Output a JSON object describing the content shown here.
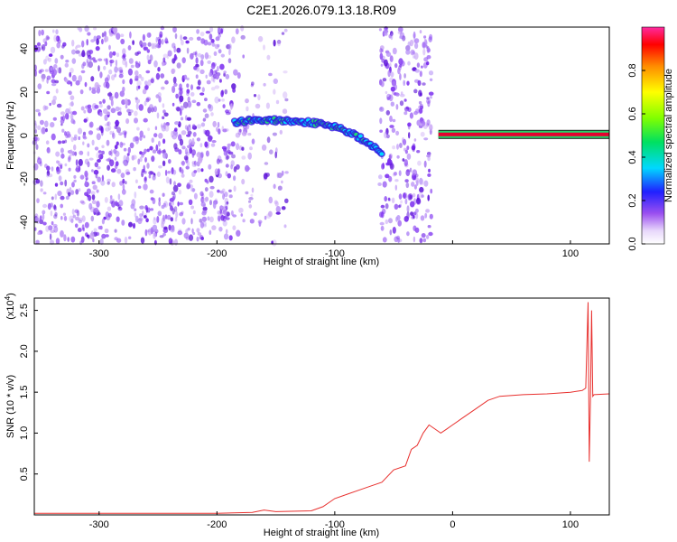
{
  "title": "C2E1.2026.079.13.18.R09",
  "colors": {
    "snr_line": "#e8302e",
    "band_red": "#e6002e",
    "band_green": "#27d06a",
    "scatter_purple": "#7a2bf0",
    "scatter_light": "#c9a6f5"
  },
  "chart_data": [
    {
      "type": "heatmap",
      "name": "spectrogram",
      "xlabel": "Height of straight line (km)",
      "ylabel": "Frequency (Hz)",
      "xlim": [
        -355,
        133
      ],
      "ylim": [
        -50,
        50
      ],
      "xticks": [
        -300,
        -200,
        -100,
        0,
        100
      ],
      "xtick_labels": [
        "-300",
        "-200",
        "-100",
        "",
        "100"
      ],
      "yticks": [
        -40,
        -20,
        0,
        20,
        40
      ],
      "ytick_labels": [
        "-40",
        "-20",
        "0",
        "20",
        "40"
      ],
      "grid": false,
      "colorbar": {
        "label": "Normalized spectral amplitude",
        "range": [
          0,
          1
        ],
        "ticks": [
          0.0,
          0.2,
          0.4,
          0.6,
          0.8
        ],
        "tick_labels": [
          "0.0",
          "0.2",
          "0.4",
          "0.6",
          "0.8"
        ]
      },
      "regions": [
        {
          "x_range": [
            -355,
            -185
          ],
          "kind": "noise",
          "density": "dense"
        },
        {
          "x_range": [
            -185,
            -140
          ],
          "kind": "noise",
          "density": "sparse"
        },
        {
          "x_range": [
            -62,
            -18
          ],
          "kind": "noise",
          "density": "dense"
        }
      ],
      "signal_track": [
        {
          "x": -185,
          "y": 6
        },
        {
          "x": -170,
          "y": 7
        },
        {
          "x": -150,
          "y": 7
        },
        {
          "x": -120,
          "y": 6
        },
        {
          "x": -100,
          "y": 4
        },
        {
          "x": -85,
          "y": 1
        },
        {
          "x": -70,
          "y": -4
        },
        {
          "x": -60,
          "y": -8
        }
      ],
      "stable_band": {
        "x_range": [
          -12,
          133
        ],
        "y": 0.5
      }
    },
    {
      "type": "line",
      "name": "snr",
      "xlabel": "Height of straight line (km)",
      "ylabel": "SNR (10 * v/v)",
      "y_multiplier_label": "(x10",
      "y_multiplier_exp": "4",
      "xlim": [
        -355,
        133
      ],
      "ylim": [
        0,
        2.65
      ],
      "xticks": [
        -300,
        -200,
        -100,
        0,
        100
      ],
      "xtick_labels": [
        "-300",
        "-200",
        "-100",
        "0",
        "100"
      ],
      "yticks": [
        0.5,
        1.0,
        1.5,
        2.0,
        2.5
      ],
      "ytick_labels": [
        "0.5",
        "1.0",
        "1.5",
        "2.0",
        "2.5"
      ],
      "grid": false,
      "series": [
        {
          "x": [
            -355,
            -300,
            -250,
            -200,
            -170,
            -160,
            -150,
            -120,
            -110,
            -100,
            -90,
            -80,
            -70,
            -60,
            -50,
            -40,
            -35,
            -30,
            -25,
            -20,
            -15,
            -10,
            -5,
            0,
            10,
            20,
            30,
            40,
            60,
            80,
            100,
            110,
            113,
            115,
            116,
            117,
            118,
            119,
            120,
            133
          ],
          "y": [
            0.02,
            0.02,
            0.02,
            0.02,
            0.03,
            0.06,
            0.04,
            0.05,
            0.1,
            0.2,
            0.25,
            0.3,
            0.35,
            0.4,
            0.55,
            0.6,
            0.8,
            0.85,
            1.0,
            1.1,
            1.05,
            1.0,
            1.05,
            1.1,
            1.2,
            1.3,
            1.4,
            1.45,
            1.47,
            1.48,
            1.5,
            1.52,
            1.55,
            2.6,
            0.65,
            1.4,
            2.5,
            1.45,
            1.47,
            1.48
          ]
        }
      ]
    }
  ]
}
